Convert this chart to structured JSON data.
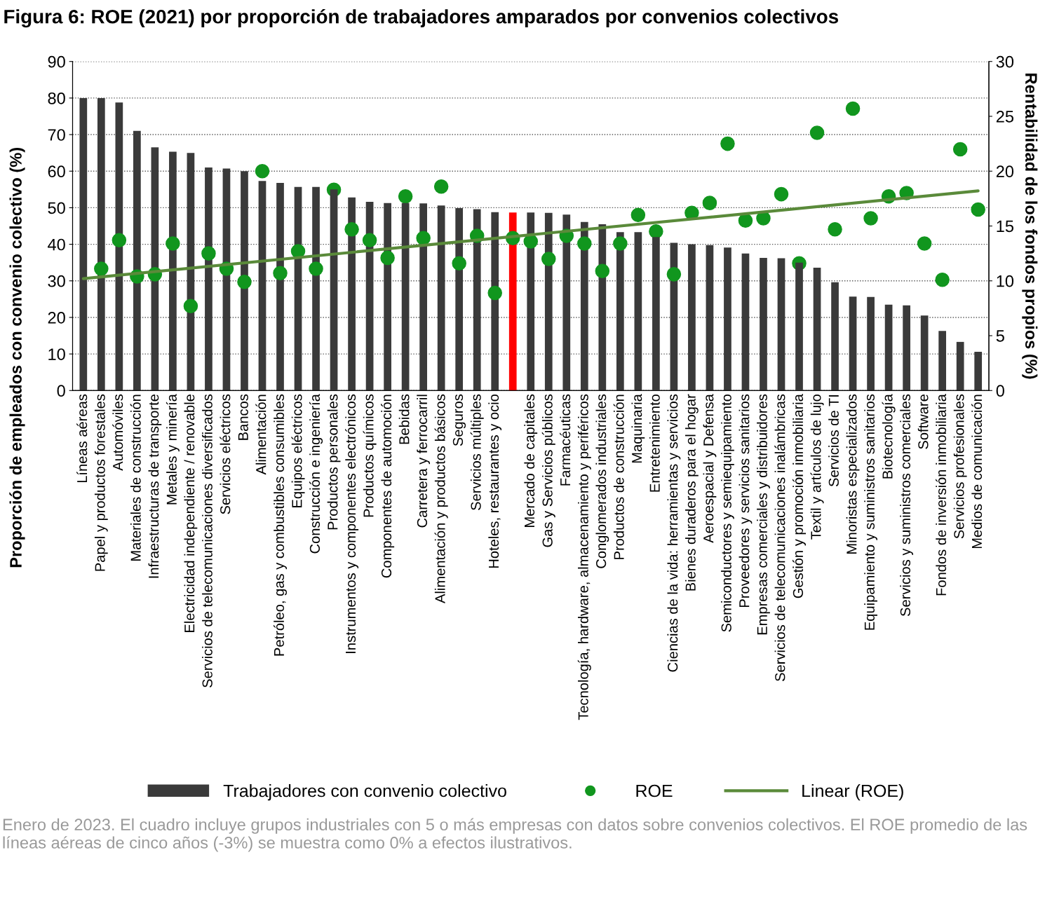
{
  "chart_data": {
    "type": "bar",
    "title": "Figura 6: ROE (2021) por proporción de trabajadores amparados por convenios colectivos",
    "ylabel": "Proporción de empleados con convenio colectivo (%)",
    "y2label": "Rentabilidad de los fondos propios (%)",
    "categories": [
      "Líneas aéreas",
      "Papel y productos forestales",
      "Automóviles",
      "Materiales de construcción",
      "Infraestructuras de transporte",
      "Metales y minería",
      "Electricidad independiente / renovable",
      "Servicios de telecomunicaciones diversificados",
      "Servicios eléctricos",
      "Bancos",
      "Alimentación",
      "Petróleo, gas y combustibles consumibles",
      "Equipos eléctricos",
      "Construcción e ingeniería",
      "Productos personales",
      "Instrumentos y componentes electrónicos",
      "Productos químicos",
      "Componentes de automoción",
      "Bebidas",
      "Carretera y ferrocarril",
      "Alimentación y productos básicos",
      "Seguros",
      "Servicios múltiples",
      "Hoteles, restaurantes y ocio",
      null,
      "Mercado de capitales",
      "Gas y Servicios públicos",
      "Farmacéuticas",
      "Tecnología, hardware, almacenamiento y periféricos",
      "Conglomerados industriales",
      "Productos de construcción",
      "Maquinaria",
      "Entretenimiento",
      "Ciencias de la vida: herramientas y servicios",
      "Bienes duraderos para el hogar",
      "Aeroespacial y Defensa",
      "Semiconductores y semiequipamiento",
      "Proveedores y servicios sanitarios",
      "Empresas comerciales y distribuidores",
      "Servicios de telecomunicaciones inalámbricas",
      "Gestión y promoción inmobiliaria",
      "Textil y artículos de lujo",
      "Servicios de TI",
      "Minoristas especializados",
      "Equipamiento y suministros sanitarios",
      "Biotecnología",
      "Servicios y suministros comerciales",
      "Software",
      "Fondos de inversión inmobiliaria",
      "Servicios profesionales",
      "Medios de comunicación"
    ],
    "series": [
      {
        "name": "Trabajadores con convenio colectivo",
        "color": "#3a3a3a",
        "colors": [
          "#3a3a3a",
          "#3a3a3a",
          "#3a3a3a",
          "#3a3a3a",
          "#3a3a3a",
          "#3a3a3a",
          "#3a3a3a",
          "#3a3a3a",
          "#3a3a3a",
          "#3a3a3a",
          "#3a3a3a",
          "#3a3a3a",
          "#3a3a3a",
          "#3a3a3a",
          "#3a3a3a",
          "#3a3a3a",
          "#3a3a3a",
          "#3a3a3a",
          "#3a3a3a",
          "#3a3a3a",
          "#3a3a3a",
          "#3a3a3a",
          "#3a3a3a",
          "#3a3a3a",
          "#ff0000",
          "#3a3a3a",
          "#3a3a3a",
          "#3a3a3a",
          "#3a3a3a",
          "#3a3a3a",
          "#3a3a3a",
          "#3a3a3a",
          "#3a3a3a",
          "#3a3a3a",
          "#3a3a3a",
          "#3a3a3a",
          "#3a3a3a",
          "#3a3a3a",
          "#3a3a3a",
          "#3a3a3a",
          "#3a3a3a",
          "#3a3a3a",
          "#3a3a3a",
          "#3a3a3a",
          "#3a3a3a",
          "#3a3a3a",
          "#3a3a3a",
          "#3a3a3a",
          "#3a3a3a",
          "#3a3a3a",
          "#3a3a3a"
        ],
        "values": [
          80,
          80,
          78.8,
          71,
          66.5,
          65.3,
          65,
          61,
          60.7,
          60,
          57.3,
          56.8,
          55.7,
          55.7,
          55,
          52.8,
          51.6,
          51.3,
          51.3,
          51.2,
          50.6,
          49.9,
          49.6,
          48.8,
          48.7,
          48.7,
          48.6,
          48.1,
          46.1,
          45.5,
          43.3,
          43.3,
          42,
          40.4,
          40,
          39.8,
          39.1,
          37.5,
          36.3,
          36.2,
          35,
          33.6,
          29.6,
          25.7,
          25.6,
          23.5,
          23.3,
          20.5,
          16.3,
          13.3,
          10.6
        ]
      },
      {
        "name": "ROE",
        "type": "scatter",
        "axis": "y2",
        "color": "#11961e",
        "marker": "circle",
        "values": [
          null,
          11.1,
          13.7,
          10.4,
          10.6,
          13.4,
          7.7,
          12.5,
          11.1,
          9.9,
          20.0,
          10.7,
          12.7,
          11.1,
          18.3,
          14.7,
          13.7,
          12.1,
          17.7,
          13.9,
          18.6,
          11.6,
          14.1,
          8.9,
          13.9,
          13.6,
          12.0,
          14.1,
          13.4,
          10.9,
          13.4,
          16.0,
          14.5,
          10.6,
          16.2,
          17.1,
          22.5,
          15.5,
          15.7,
          17.9,
          11.6,
          23.5,
          14.7,
          25.7,
          15.7,
          17.7,
          18.0,
          13.4,
          10.1,
          22.0,
          16.5
        ]
      },
      {
        "name": "Linear (ROE)",
        "type": "line",
        "axis": "y2",
        "color": "#5a8a3a",
        "line_style": "solid",
        "values": [
          10.2,
          null,
          null,
          null,
          null,
          null,
          null,
          null,
          null,
          null,
          null,
          null,
          null,
          null,
          null,
          null,
          null,
          null,
          null,
          null,
          null,
          null,
          null,
          null,
          null,
          null,
          null,
          null,
          null,
          null,
          null,
          null,
          null,
          null,
          null,
          null,
          null,
          null,
          null,
          null,
          null,
          null,
          null,
          null,
          null,
          null,
          null,
          null,
          null,
          null,
          18.2
        ]
      }
    ],
    "ylim": [
      0,
      90
    ],
    "yticks": [
      0,
      10,
      20,
      30,
      40,
      50,
      60,
      70,
      80,
      90
    ],
    "y2lim": [
      0,
      30
    ],
    "y2ticks": [
      0,
      5,
      10,
      15,
      20,
      25,
      30
    ],
    "grid": "y",
    "legend": "bottom",
    "annotations": [
      "Enero de 2023. El cuadro incluye grupos industriales con 5 o más empresas con datos sobre convenios colectivos. El ROE promedio de las líneas aéreas de cinco años (-3%) se muestra como 0% a efectos ilustrativos."
    ]
  }
}
